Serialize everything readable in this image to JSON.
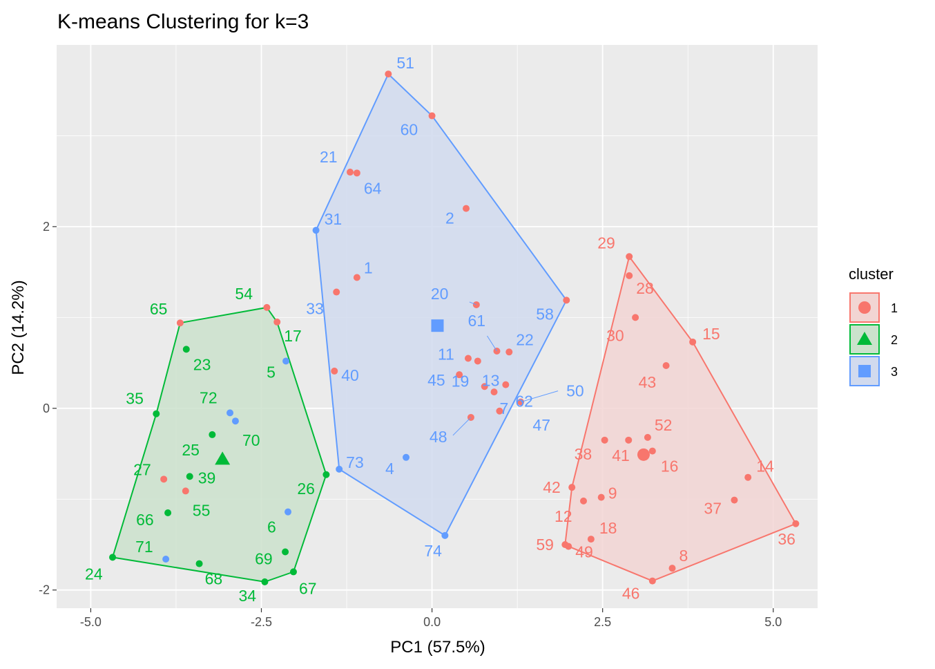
{
  "chart_data": {
    "type": "scatter",
    "title": "K-means Clustering for k=3",
    "xlabel": "PC1 (57.5%)",
    "ylabel": "PC2 (14.2%)",
    "xlim": [
      -5.5,
      5.65
    ],
    "ylim": [
      -2.2,
      4.0
    ],
    "xticks": [
      -5.0,
      -2.5,
      0.0,
      2.5,
      5.0
    ],
    "xtick_labels": [
      "-5.0",
      "-2.5",
      "0.0",
      "2.5",
      "5.0"
    ],
    "yticks": [
      -2,
      0,
      2
    ],
    "ytick_labels": [
      "-2",
      "0",
      "2"
    ],
    "grid": true,
    "legend": {
      "title": "cluster",
      "position": "right",
      "entries": [
        {
          "label": "1",
          "shape": "circle"
        },
        {
          "label": "2",
          "shape": "triangle"
        },
        {
          "label": "3",
          "shape": "square"
        }
      ]
    },
    "colors": {
      "1": "#F8766D",
      "2": "#00BA38",
      "3": "#619CFF"
    },
    "fill_colors": {
      "1": "#F2D5D3",
      "2": "#CBE2CC",
      "3": "#D1DAEE"
    },
    "hulls": {
      "1": [
        [
          2.89,
          1.67
        ],
        [
          3.82,
          0.73
        ],
        [
          5.33,
          -1.27
        ],
        [
          3.23,
          -1.9
        ],
        [
          2.0,
          -1.52
        ],
        [
          1.95,
          -1.5
        ],
        [
          2.05,
          -0.87
        ]
      ],
      "2": [
        [
          -2.42,
          1.11
        ],
        [
          -2.27,
          0.95
        ],
        [
          -1.55,
          -0.73
        ],
        [
          -2.03,
          -1.8
        ],
        [
          -2.45,
          -1.91
        ],
        [
          -4.68,
          -1.64
        ],
        [
          -4.04,
          -0.06
        ],
        [
          -3.69,
          0.94
        ]
      ],
      "3": [
        [
          -0.64,
          3.68
        ],
        [
          0.0,
          3.22
        ],
        [
          1.97,
          1.19
        ],
        [
          0.19,
          -1.4
        ],
        [
          -1.36,
          -0.67
        ],
        [
          -1.7,
          1.96
        ]
      ]
    },
    "centroids": [
      {
        "cluster": "1",
        "x": 3.1,
        "y": -0.51
      },
      {
        "cluster": "2",
        "x": -3.07,
        "y": -0.56
      },
      {
        "cluster": "3",
        "x": 0.08,
        "y": 0.91
      }
    ],
    "points": [
      {
        "id": "51",
        "x": -0.64,
        "y": 3.68,
        "cluster": "1",
        "label_cluster": "3"
      },
      {
        "id": "60",
        "x": 0.0,
        "y": 3.22,
        "cluster": "1",
        "label_cluster": "3"
      },
      {
        "id": "21",
        "x": -1.2,
        "y": 2.6,
        "cluster": "1",
        "label_cluster": "3"
      },
      {
        "id": "64",
        "x": -1.1,
        "y": 2.59,
        "cluster": "1",
        "label_cluster": "3"
      },
      {
        "id": "2",
        "x": 0.5,
        "y": 2.2,
        "cluster": "1",
        "label_cluster": "3"
      },
      {
        "id": "31",
        "x": -1.7,
        "y": 1.96,
        "cluster": "3",
        "label_cluster": "3"
      },
      {
        "id": "1",
        "x": -1.1,
        "y": 1.44,
        "cluster": "1",
        "label_cluster": "3"
      },
      {
        "id": "33",
        "x": -1.4,
        "y": 1.28,
        "cluster": "1",
        "label_cluster": "3"
      },
      {
        "id": "20",
        "x": 0.65,
        "y": 1.14,
        "cluster": "1",
        "label_cluster": "3"
      },
      {
        "id": "58",
        "x": 1.97,
        "y": 1.19,
        "cluster": "1",
        "label_cluster": "3"
      },
      {
        "id": "61",
        "x": 0.95,
        "y": 0.63,
        "cluster": "1",
        "label_cluster": "3"
      },
      {
        "id": "22",
        "x": 1.13,
        "y": 0.62,
        "cluster": "1",
        "label_cluster": "3"
      },
      {
        "id": "11",
        "x": 0.53,
        "y": 0.55,
        "cluster": "1",
        "label_cluster": "3"
      },
      {
        "id": "13",
        "x": 0.67,
        "y": 0.52,
        "cluster": "1",
        "label_cluster": "3"
      },
      {
        "id": "40",
        "x": -1.43,
        "y": 0.41,
        "cluster": "1",
        "label_cluster": "3"
      },
      {
        "id": "45",
        "x": 0.4,
        "y": 0.37,
        "cluster": "1",
        "label_cluster": "3"
      },
      {
        "id": "62",
        "x": 1.08,
        "y": 0.26,
        "cluster": "1",
        "label_cluster": "3"
      },
      {
        "id": "50",
        "x": 1.3,
        "y": 0.07,
        "cluster": "1",
        "label_cluster": "3"
      },
      {
        "id": "19",
        "x": 0.77,
        "y": 0.24,
        "cluster": "1",
        "label_cluster": "3"
      },
      {
        "id": "48",
        "x": 0.57,
        "y": -0.1,
        "cluster": "1",
        "label_cluster": "3"
      },
      {
        "id": "7",
        "x": 0.91,
        "y": 0.18,
        "cluster": "1",
        "label_cluster": "3"
      },
      {
        "id": "47",
        "x": 0.99,
        "y": -0.03,
        "cluster": "1",
        "label_cluster": "3"
      },
      {
        "id": "4",
        "x": -0.38,
        "y": -0.54,
        "cluster": "3",
        "label_cluster": "3"
      },
      {
        "id": "73",
        "x": -1.36,
        "y": -0.67,
        "cluster": "3",
        "label_cluster": "3"
      },
      {
        "id": "74",
        "x": 0.19,
        "y": -1.4,
        "cluster": "3",
        "label_cluster": "3"
      },
      {
        "id": "29",
        "x": 2.89,
        "y": 1.67,
        "cluster": "1",
        "label_cluster": "1"
      },
      {
        "id": "28",
        "x": 2.89,
        "y": 1.46,
        "cluster": "1",
        "label_cluster": "1"
      },
      {
        "id": "30",
        "x": 2.98,
        "y": 1.0,
        "cluster": "1",
        "label_cluster": "1"
      },
      {
        "id": "15",
        "x": 3.82,
        "y": 0.73,
        "cluster": "1",
        "label_cluster": "1"
      },
      {
        "id": "43",
        "x": 3.43,
        "y": 0.47,
        "cluster": "1",
        "label_cluster": "1"
      },
      {
        "id": "52",
        "x": 3.16,
        "y": -0.32,
        "cluster": "1",
        "label_cluster": "1"
      },
      {
        "id": "38",
        "x": 2.53,
        "y": -0.35,
        "cluster": "1",
        "label_cluster": "1"
      },
      {
        "id": "41",
        "x": 2.88,
        "y": -0.35,
        "cluster": "1",
        "label_cluster": "1"
      },
      {
        "id": "16",
        "x": 3.23,
        "y": -0.47,
        "cluster": "1",
        "label_cluster": "1"
      },
      {
        "id": "14",
        "x": 4.63,
        "y": -0.76,
        "cluster": "1",
        "label_cluster": "1"
      },
      {
        "id": "42",
        "x": 2.05,
        "y": -0.87,
        "cluster": "1",
        "label_cluster": "1"
      },
      {
        "id": "9",
        "x": 2.48,
        "y": -0.98,
        "cluster": "1",
        "label_cluster": "1"
      },
      {
        "id": "12",
        "x": 2.22,
        "y": -1.02,
        "cluster": "1",
        "label_cluster": "1"
      },
      {
        "id": "37",
        "x": 4.43,
        "y": -1.01,
        "cluster": "1",
        "label_cluster": "1"
      },
      {
        "id": "36",
        "x": 5.33,
        "y": -1.27,
        "cluster": "1",
        "label_cluster": "1"
      },
      {
        "id": "18",
        "x": 2.33,
        "y": -1.44,
        "cluster": "1",
        "label_cluster": "1"
      },
      {
        "id": "59",
        "x": 1.95,
        "y": -1.5,
        "cluster": "1",
        "label_cluster": "1"
      },
      {
        "id": "49",
        "x": 2.0,
        "y": -1.52,
        "cluster": "1",
        "label_cluster": "1"
      },
      {
        "id": "8",
        "x": 3.52,
        "y": -1.76,
        "cluster": "1",
        "label_cluster": "1"
      },
      {
        "id": "46",
        "x": 3.23,
        "y": -1.9,
        "cluster": "1",
        "label_cluster": "1"
      },
      {
        "id": "54",
        "x": -2.42,
        "y": 1.11,
        "cluster": "1",
        "label_cluster": "2"
      },
      {
        "id": "65",
        "x": -3.69,
        "y": 0.94,
        "cluster": "1",
        "label_cluster": "2"
      },
      {
        "id": "17",
        "x": -2.27,
        "y": 0.95,
        "cluster": "1",
        "label_cluster": "2"
      },
      {
        "id": "23",
        "x": -3.6,
        "y": 0.65,
        "cluster": "2",
        "label_cluster": "2"
      },
      {
        "id": "5",
        "x": -2.14,
        "y": 0.52,
        "cluster": "3",
        "label_cluster": "2"
      },
      {
        "id": "35",
        "x": -4.04,
        "y": -0.06,
        "cluster": "2",
        "label_cluster": "2"
      },
      {
        "id": "72",
        "x": -2.96,
        "y": -0.05,
        "cluster": "3",
        "label_cluster": "2"
      },
      {
        "id": "70",
        "x": -2.88,
        "y": -0.14,
        "cluster": "3",
        "label_cluster": "2"
      },
      {
        "id": "25",
        "x": -3.22,
        "y": -0.29,
        "cluster": "2",
        "label_cluster": "2"
      },
      {
        "id": "27",
        "x": -3.93,
        "y": -0.78,
        "cluster": "1",
        "label_cluster": "2"
      },
      {
        "id": "39",
        "x": -3.55,
        "y": -0.75,
        "cluster": "2",
        "label_cluster": "2"
      },
      {
        "id": "55",
        "x": -3.61,
        "y": -0.91,
        "cluster": "1",
        "label_cluster": "2"
      },
      {
        "id": "26",
        "x": -1.55,
        "y": -0.73,
        "cluster": "2",
        "label_cluster": "2"
      },
      {
        "id": "66",
        "x": -3.87,
        "y": -1.15,
        "cluster": "2",
        "label_cluster": "2"
      },
      {
        "id": "6",
        "x": -2.11,
        "y": -1.14,
        "cluster": "3",
        "label_cluster": "2"
      },
      {
        "id": "71",
        "x": -3.9,
        "y": -1.66,
        "cluster": "3",
        "label_cluster": "2"
      },
      {
        "id": "69",
        "x": -2.15,
        "y": -1.58,
        "cluster": "2",
        "label_cluster": "2"
      },
      {
        "id": "24",
        "x": -4.68,
        "y": -1.64,
        "cluster": "2",
        "label_cluster": "2"
      },
      {
        "id": "68",
        "x": -3.41,
        "y": -1.71,
        "cluster": "2",
        "label_cluster": "2"
      },
      {
        "id": "67",
        "x": -2.03,
        "y": -1.8,
        "cluster": "2",
        "label_cluster": "2"
      },
      {
        "id": "34",
        "x": -2.45,
        "y": -1.91,
        "cluster": "2",
        "label_cluster": "2"
      }
    ]
  }
}
